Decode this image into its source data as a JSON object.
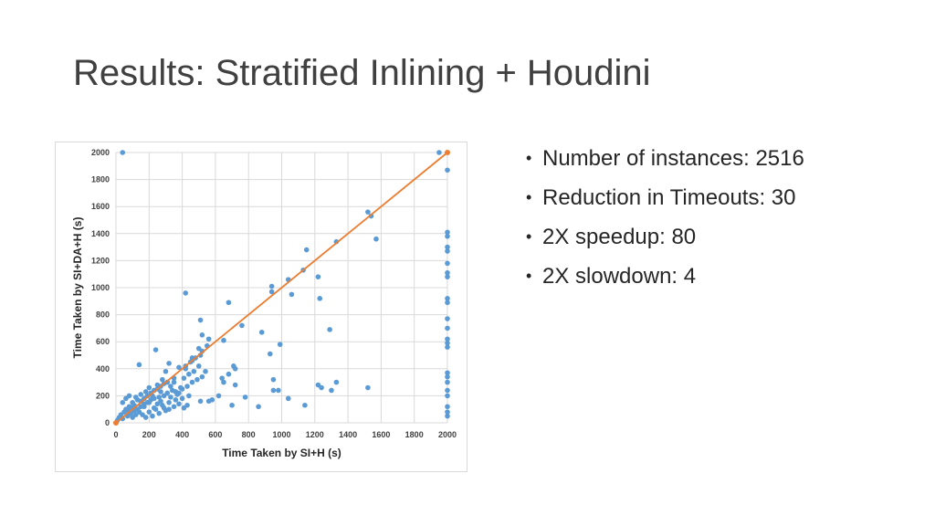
{
  "slide": {
    "title": "Results: Stratified Inlining + Houdini"
  },
  "bullets": [
    "Number of instances: 2516",
    "Reduction in Timeouts: 30",
    "2X speedup: 80",
    "2X slowdown: 4"
  ],
  "colors": {
    "points": "#5b9bd5",
    "diagonal": "#ed7d31",
    "grid": "#d9d9d9"
  },
  "chart_data": {
    "type": "scatter",
    "title": "",
    "xlabel": "Time Taken by SI+H (s)",
    "ylabel": "Time Taken by SI+DA+H (s)",
    "xlim": [
      0,
      2000
    ],
    "ylim": [
      0,
      2000
    ],
    "xticks": [
      0,
      200,
      400,
      600,
      800,
      1000,
      1200,
      1400,
      1600,
      1800,
      2000
    ],
    "yticks": [
      0,
      200,
      400,
      600,
      800,
      1000,
      1200,
      1400,
      1600,
      1800,
      2000
    ],
    "grid": true,
    "legend": "none",
    "diagonal_line": {
      "from": [
        0,
        0
      ],
      "to": [
        2000,
        2000
      ]
    },
    "points": [
      [
        40,
        2000
      ],
      [
        1950,
        2000
      ],
      [
        2000,
        1870
      ],
      [
        2000,
        1410
      ],
      [
        2000,
        1380
      ],
      [
        2000,
        1300
      ],
      [
        2000,
        1270
      ],
      [
        2000,
        1180
      ],
      [
        2000,
        1110
      ],
      [
        2000,
        1080
      ],
      [
        2000,
        920
      ],
      [
        2000,
        890
      ],
      [
        2000,
        770
      ],
      [
        2000,
        700
      ],
      [
        2000,
        620
      ],
      [
        2000,
        590
      ],
      [
        2000,
        560
      ],
      [
        2000,
        370
      ],
      [
        2000,
        340
      ],
      [
        2000,
        300
      ],
      [
        2000,
        240
      ],
      [
        2000,
        200
      ],
      [
        2000,
        120
      ],
      [
        2000,
        80
      ],
      [
        2000,
        50
      ],
      [
        1520,
        1560
      ],
      [
        1540,
        1530
      ],
      [
        1570,
        1360
      ],
      [
        1330,
        1340
      ],
      [
        1150,
        1280
      ],
      [
        1130,
        1130
      ],
      [
        1220,
        1080
      ],
      [
        1040,
        1060
      ],
      [
        1060,
        950
      ],
      [
        940,
        1010
      ],
      [
        940,
        970
      ],
      [
        1230,
        920
      ],
      [
        1290,
        690
      ],
      [
        990,
        580
      ],
      [
        680,
        890
      ],
      [
        420,
        960
      ],
      [
        510,
        760
      ],
      [
        760,
        720
      ],
      [
        520,
        650
      ],
      [
        650,
        610
      ],
      [
        560,
        620
      ],
      [
        880,
        670
      ],
      [
        550,
        570
      ],
      [
        930,
        510
      ],
      [
        710,
        420
      ],
      [
        720,
        400
      ],
      [
        1330,
        300
      ],
      [
        1300,
        240
      ],
      [
        1220,
        280
      ],
      [
        1240,
        260
      ],
      [
        1520,
        260
      ],
      [
        950,
        320
      ],
      [
        980,
        240
      ],
      [
        950,
        240
      ],
      [
        1040,
        180
      ],
      [
        1140,
        130
      ],
      [
        860,
        120
      ],
      [
        780,
        190
      ],
      [
        700,
        130
      ],
      [
        620,
        200
      ],
      [
        580,
        170
      ],
      [
        560,
        160
      ],
      [
        510,
        160
      ],
      [
        720,
        280
      ],
      [
        640,
        330
      ],
      [
        680,
        360
      ],
      [
        650,
        300
      ],
      [
        240,
        540
      ],
      [
        140,
        430
      ],
      [
        320,
        440
      ],
      [
        380,
        410
      ],
      [
        420,
        400
      ],
      [
        450,
        450
      ],
      [
        480,
        480
      ],
      [
        300,
        380
      ],
      [
        280,
        320
      ],
      [
        350,
        300
      ],
      [
        390,
        260
      ],
      [
        250,
        280
      ],
      [
        200,
        260
      ],
      [
        180,
        230
      ],
      [
        150,
        210
      ],
      [
        120,
        190
      ],
      [
        100,
        150
      ],
      [
        80,
        120
      ],
      [
        60,
        100
      ],
      [
        50,
        80
      ],
      [
        30,
        60
      ],
      [
        20,
        40
      ],
      [
        10,
        20
      ],
      [
        40,
        30
      ],
      [
        70,
        50
      ],
      [
        90,
        70
      ],
      [
        110,
        90
      ],
      [
        130,
        100
      ],
      [
        150,
        120
      ],
      [
        170,
        140
      ],
      [
        190,
        150
      ],
      [
        210,
        170
      ],
      [
        230,
        180
      ],
      [
        260,
        190
      ],
      [
        290,
        200
      ],
      [
        310,
        220
      ],
      [
        340,
        240
      ],
      [
        360,
        230
      ],
      [
        380,
        220
      ],
      [
        400,
        250
      ],
      [
        430,
        270
      ],
      [
        460,
        300
      ],
      [
        490,
        320
      ],
      [
        520,
        340
      ],
      [
        540,
        380
      ],
      [
        500,
        420
      ],
      [
        470,
        380
      ],
      [
        440,
        360
      ],
      [
        410,
        330
      ],
      [
        330,
        270
      ],
      [
        270,
        230
      ],
      [
        220,
        200
      ],
      [
        200,
        150
      ],
      [
        170,
        120
      ],
      [
        140,
        80
      ],
      [
        120,
        60
      ],
      [
        100,
        40
      ],
      [
        160,
        60
      ],
      [
        200,
        80
      ],
      [
        240,
        100
      ],
      [
        280,
        130
      ],
      [
        320,
        150
      ],
      [
        360,
        170
      ],
      [
        400,
        180
      ],
      [
        440,
        200
      ],
      [
        300,
        90
      ],
      [
        260,
        70
      ],
      [
        220,
        50
      ],
      [
        180,
        40
      ],
      [
        230,
        110
      ],
      [
        250,
        140
      ],
      [
        270,
        160
      ],
      [
        290,
        110
      ],
      [
        330,
        190
      ],
      [
        370,
        210
      ],
      [
        130,
        170
      ],
      [
        110,
        130
      ],
      [
        90,
        110
      ],
      [
        70,
        90
      ],
      [
        150,
        160
      ],
      [
        170,
        180
      ],
      [
        190,
        200
      ],
      [
        210,
        220
      ],
      [
        230,
        240
      ],
      [
        250,
        250
      ],
      [
        270,
        270
      ],
      [
        290,
        290
      ],
      [
        310,
        300
      ],
      [
        350,
        330
      ],
      [
        420,
        420
      ],
      [
        460,
        460
      ],
      [
        510,
        500
      ],
      [
        520,
        530
      ],
      [
        500,
        550
      ],
      [
        460,
        480
      ],
      [
        430,
        130
      ],
      [
        410,
        110
      ],
      [
        380,
        140
      ],
      [
        350,
        120
      ],
      [
        320,
        100
      ],
      [
        60,
        180
      ],
      [
        40,
        150
      ],
      [
        80,
        200
      ]
    ]
  }
}
